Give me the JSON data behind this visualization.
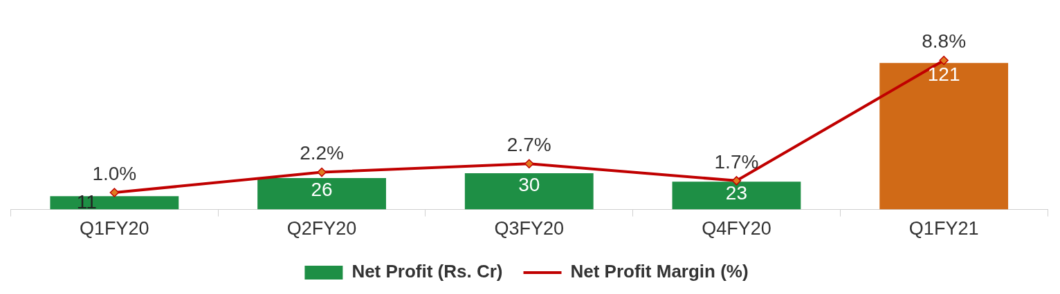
{
  "chart_data": {
    "type": "bar",
    "categories": [
      "Q1FY20",
      "Q2FY20",
      "Q3FY20",
      "Q4FY20",
      "Q1FY21"
    ],
    "series": [
      {
        "name": "Net Profit (Rs. Cr)",
        "color": "#1e8f45",
        "colors": [
          "#1e8f45",
          "#1e8f45",
          "#1e8f45",
          "#1e8f45",
          "#d06a17"
        ],
        "values": [
          11,
          26,
          30,
          23,
          121
        ],
        "value_labels": [
          "11",
          "26",
          "30",
          "23",
          "121"
        ]
      },
      {
        "name": "Net Profit Margin (%)",
        "type": "line",
        "axis": "y2",
        "color": "#c00000",
        "values": [
          1.0,
          2.2,
          2.7,
          1.7,
          8.8
        ],
        "value_labels": [
          "1.0%",
          "2.2%",
          "2.7%",
          "1.7%",
          "8.8%"
        ]
      }
    ],
    "grid": false,
    "legend": "bottom",
    "marker": "diamond",
    "line_style": "solid"
  }
}
